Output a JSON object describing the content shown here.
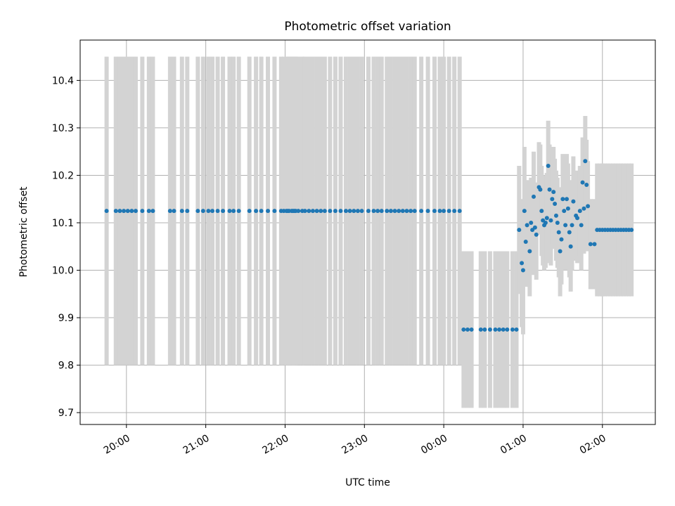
{
  "chart_data": {
    "type": "scatter",
    "title": "Photometric offset variation",
    "xlabel": "UTC time",
    "ylabel": "Photometric offset",
    "x_unit": "UTC time (HH:MM)",
    "xlim": [
      "19:25",
      "02:40"
    ],
    "ylim": [
      9.675,
      10.485
    ],
    "x_ticks": [
      "20:00",
      "21:00",
      "22:00",
      "23:00",
      "00:00",
      "01:00",
      "02:00"
    ],
    "y_ticks": [
      "9.7",
      "9.8",
      "9.9",
      "10.0",
      "10.1",
      "10.2",
      "10.3",
      "10.4"
    ],
    "grid": true,
    "colors": {
      "points": "#1f77b4",
      "errorbars": "#d3d3d3",
      "grid": "#b0b0b0",
      "axes": "#000000"
    },
    "series": [
      {
        "err": 0.325,
        "points": [
          [
            "19:45",
            10.125
          ],
          [
            "19:52",
            10.125
          ],
          [
            "19:55",
            10.125
          ],
          [
            "19:58",
            10.125
          ],
          [
            "20:01",
            10.125
          ],
          [
            "20:04",
            10.125
          ],
          [
            "20:07",
            10.125
          ],
          [
            "20:12",
            10.125
          ],
          [
            "20:17",
            10.125
          ],
          [
            "20:20",
            10.125
          ],
          [
            "20:33",
            10.125
          ],
          [
            "20:36",
            10.125
          ],
          [
            "20:42",
            10.125
          ],
          [
            "20:46",
            10.125
          ],
          [
            "20:54",
            10.125
          ],
          [
            "20:58",
            10.125
          ],
          [
            "21:02",
            10.125
          ],
          [
            "21:05",
            10.125
          ],
          [
            "21:09",
            10.125
          ],
          [
            "21:13",
            10.125
          ],
          [
            "21:18",
            10.125
          ],
          [
            "21:21",
            10.125
          ],
          [
            "21:25",
            10.125
          ],
          [
            "21:33",
            10.125
          ],
          [
            "21:38",
            10.125
          ],
          [
            "21:42",
            10.125
          ],
          [
            "21:47",
            10.125
          ],
          [
            "21:52",
            10.125
          ],
          [
            "21:57",
            10.125
          ],
          [
            "22:02",
            10.125
          ],
          [
            "22:05",
            10.125
          ],
          [
            "22:07",
            10.125
          ],
          [
            "21:59",
            10.125
          ],
          [
            "22:01",
            10.125
          ],
          [
            "22:03",
            10.125
          ],
          [
            "22:06",
            10.125
          ],
          [
            "22:08",
            10.125
          ],
          [
            "22:10",
            10.125
          ],
          [
            "22:13",
            10.125
          ],
          [
            "22:15",
            10.125
          ],
          [
            "22:18",
            10.125
          ],
          [
            "22:21",
            10.125
          ],
          [
            "22:24",
            10.125
          ],
          [
            "22:27",
            10.125
          ],
          [
            "22:30",
            10.125
          ],
          [
            "22:34",
            10.125
          ],
          [
            "22:38",
            10.125
          ],
          [
            "22:42",
            10.125
          ],
          [
            "22:46",
            10.125
          ],
          [
            "22:49",
            10.125
          ],
          [
            "22:52",
            10.125
          ],
          [
            "22:55",
            10.125
          ],
          [
            "22:58",
            10.125
          ],
          [
            "23:03",
            10.125
          ],
          [
            "23:07",
            10.125
          ],
          [
            "23:10",
            10.125
          ],
          [
            "23:13",
            10.125
          ],
          [
            "23:17",
            10.125
          ],
          [
            "23:20",
            10.125
          ],
          [
            "23:23",
            10.125
          ],
          [
            "23:26",
            10.125
          ],
          [
            "23:29",
            10.125
          ],
          [
            "23:32",
            10.125
          ],
          [
            "23:35",
            10.125
          ],
          [
            "23:38",
            10.125
          ],
          [
            "23:43",
            10.125
          ],
          [
            "23:48",
            10.125
          ],
          [
            "23:53",
            10.125
          ],
          [
            "23:57",
            10.125
          ],
          [
            "00:00",
            10.125
          ],
          [
            "00:04",
            10.125
          ],
          [
            "00:08",
            10.125
          ],
          [
            "00:12",
            10.125
          ]
        ]
      },
      {
        "err": 0.165,
        "points": [
          [
            "00:15",
            9.875
          ],
          [
            "00:18",
            9.875
          ],
          [
            "00:21",
            9.875
          ],
          [
            "00:28",
            9.875
          ],
          [
            "00:31",
            9.875
          ],
          [
            "00:35",
            9.875
          ],
          [
            "00:39",
            9.875
          ],
          [
            "00:42",
            9.875
          ],
          [
            "00:45",
            9.875
          ],
          [
            "00:48",
            9.875
          ],
          [
            "00:52",
            9.875
          ],
          [
            "00:55",
            9.875
          ]
        ]
      },
      {
        "err": "varies",
        "points": [
          [
            "00:57",
            10.085,
            0.135
          ],
          [
            "00:59",
            10.015,
            0.135
          ],
          [
            "01:00",
            10.0,
            0.135
          ],
          [
            "01:01",
            10.125,
            0.135
          ],
          [
            "01:02",
            10.06,
            0.095
          ],
          [
            "01:03",
            10.095,
            0.095
          ],
          [
            "01:05",
            10.04,
            0.095
          ],
          [
            "01:06",
            10.1,
            0.095
          ],
          [
            "01:07",
            10.085,
            0.095
          ],
          [
            "01:08",
            10.155,
            0.095
          ],
          [
            "01:09",
            10.09,
            0.095
          ],
          [
            "01:10",
            10.075,
            0.095
          ],
          [
            "01:12",
            10.175,
            0.095
          ],
          [
            "01:13",
            10.17,
            0.095
          ],
          [
            "01:14",
            10.125,
            0.095
          ],
          [
            "01:15",
            10.105,
            0.095
          ],
          [
            "01:16",
            10.095,
            0.095
          ],
          [
            "01:17",
            10.1,
            0.095
          ],
          [
            "01:18",
            10.11,
            0.095
          ],
          [
            "01:19",
            10.22,
            0.095
          ],
          [
            "01:20",
            10.17,
            0.095
          ],
          [
            "01:21",
            10.105,
            0.095
          ],
          [
            "01:22",
            10.15,
            0.095
          ],
          [
            "01:23",
            10.165,
            0.095
          ],
          [
            "01:24",
            10.14,
            0.095
          ],
          [
            "01:25",
            10.115,
            0.095
          ],
          [
            "01:26",
            10.1,
            0.095
          ],
          [
            "01:27",
            10.08,
            0.095
          ],
          [
            "01:28",
            10.04,
            0.095
          ],
          [
            "01:29",
            10.065,
            0.095
          ],
          [
            "01:30",
            10.15,
            0.095
          ],
          [
            "01:31",
            10.125,
            0.095
          ],
          [
            "01:32",
            10.095,
            0.095
          ],
          [
            "01:33",
            10.15,
            0.095
          ],
          [
            "01:34",
            10.13,
            0.095
          ],
          [
            "01:35",
            10.08,
            0.095
          ],
          [
            "01:36",
            10.05,
            0.095
          ],
          [
            "01:37",
            10.095,
            0.095
          ],
          [
            "01:38",
            10.145,
            0.095
          ],
          [
            "01:40",
            10.115,
            0.095
          ],
          [
            "01:41",
            10.11,
            0.095
          ],
          [
            "01:43",
            10.125,
            0.095
          ],
          [
            "01:44",
            10.095,
            0.095
          ],
          [
            "01:45",
            10.185,
            0.095
          ],
          [
            "01:46",
            10.13,
            0.095
          ],
          [
            "01:47",
            10.23,
            0.095
          ],
          [
            "01:48",
            10.18,
            0.095
          ],
          [
            "01:49",
            10.135,
            0.095
          ],
          [
            "01:51",
            10.055,
            0.095
          ],
          [
            "01:54",
            10.055,
            0.095
          ],
          [
            "01:56",
            10.085,
            0.14
          ],
          [
            "01:58",
            10.085,
            0.14
          ],
          [
            "02:00",
            10.085,
            0.14
          ],
          [
            "02:02",
            10.085,
            0.14
          ],
          [
            "02:04",
            10.085,
            0.14
          ],
          [
            "02:06",
            10.085,
            0.14
          ],
          [
            "02:08",
            10.085,
            0.14
          ],
          [
            "02:10",
            10.085,
            0.14
          ],
          [
            "02:12",
            10.085,
            0.14
          ],
          [
            "02:14",
            10.085,
            0.14
          ],
          [
            "02:16",
            10.085,
            0.14
          ],
          [
            "02:18",
            10.085,
            0.14
          ],
          [
            "02:20",
            10.085,
            0.14
          ],
          [
            "02:22",
            10.085,
            0.14
          ]
        ]
      }
    ]
  }
}
